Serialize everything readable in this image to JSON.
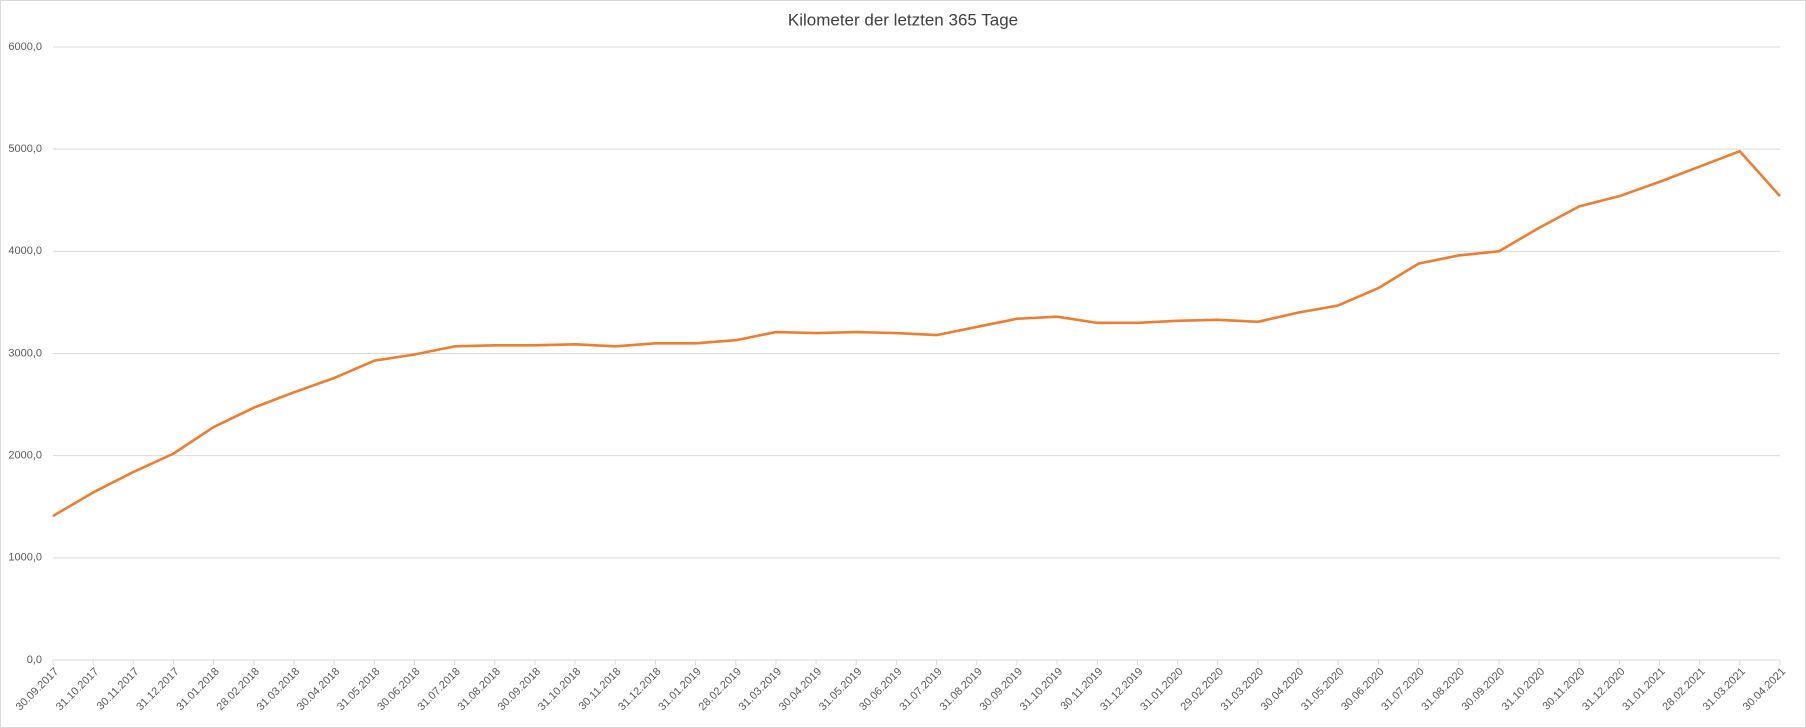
{
  "chart_data": {
    "type": "line",
    "title": "Kilometer der letzten 365 Tage",
    "categories": [
      "30.09.2017",
      "31.10.2017",
      "30.11.2017",
      "31.12.2017",
      "31.01.2018",
      "28.02.2018",
      "31.03.2018",
      "30.04.2018",
      "31.05.2018",
      "30.06.2018",
      "31.07.2018",
      "31.08.2018",
      "30.09.2018",
      "31.10.2018",
      "30.11.2018",
      "31.12.2018",
      "31.01.2019",
      "28.02.2019",
      "31.03.2019",
      "30.04.2019",
      "31.05.2019",
      "30.06.2019",
      "31.07.2019",
      "31.08.2019",
      "30.09.2019",
      "31.10.2019",
      "30.11.2019",
      "31.12.2019",
      "31.01.2020",
      "29.02.2020",
      "31.03.2020",
      "30.04.2020",
      "31.05.2020",
      "30.06.2020",
      "31.07.2020",
      "31.08.2020",
      "30.09.2020",
      "31.10.2020",
      "30.11.2020",
      "31.12.2020",
      "31.01.2021",
      "28.02.2021",
      "31.03.2021",
      "30.04.2021"
    ],
    "series": [
      {
        "name": "Kilometer",
        "color": "#ed7d31",
        "values": [
          1410,
          1640,
          1840,
          2020,
          2280,
          2470,
          2620,
          2760,
          2930,
          2990,
          3070,
          3080,
          3080,
          3090,
          3070,
          3100,
          3100,
          3130,
          3210,
          3200,
          3210,
          3200,
          3180,
          3260,
          3340,
          3360,
          3300,
          3300,
          3320,
          3330,
          3310,
          3400,
          3470,
          3640,
          3880,
          3960,
          4000,
          4230,
          4440,
          4540,
          4680,
          4830,
          4980,
          4540
        ]
      }
    ],
    "ylim": [
      0,
      6000
    ],
    "yticks": [
      {
        "value": 0,
        "label": "0,0"
      },
      {
        "value": 1000,
        "label": "1000,0"
      },
      {
        "value": 2000,
        "label": "2000,0"
      },
      {
        "value": 3000,
        "label": "3000,0"
      },
      {
        "value": 4000,
        "label": "4000,0"
      },
      {
        "value": 5000,
        "label": "5000,0"
      },
      {
        "value": 6000,
        "label": "6000,0"
      }
    ],
    "grid": true
  }
}
